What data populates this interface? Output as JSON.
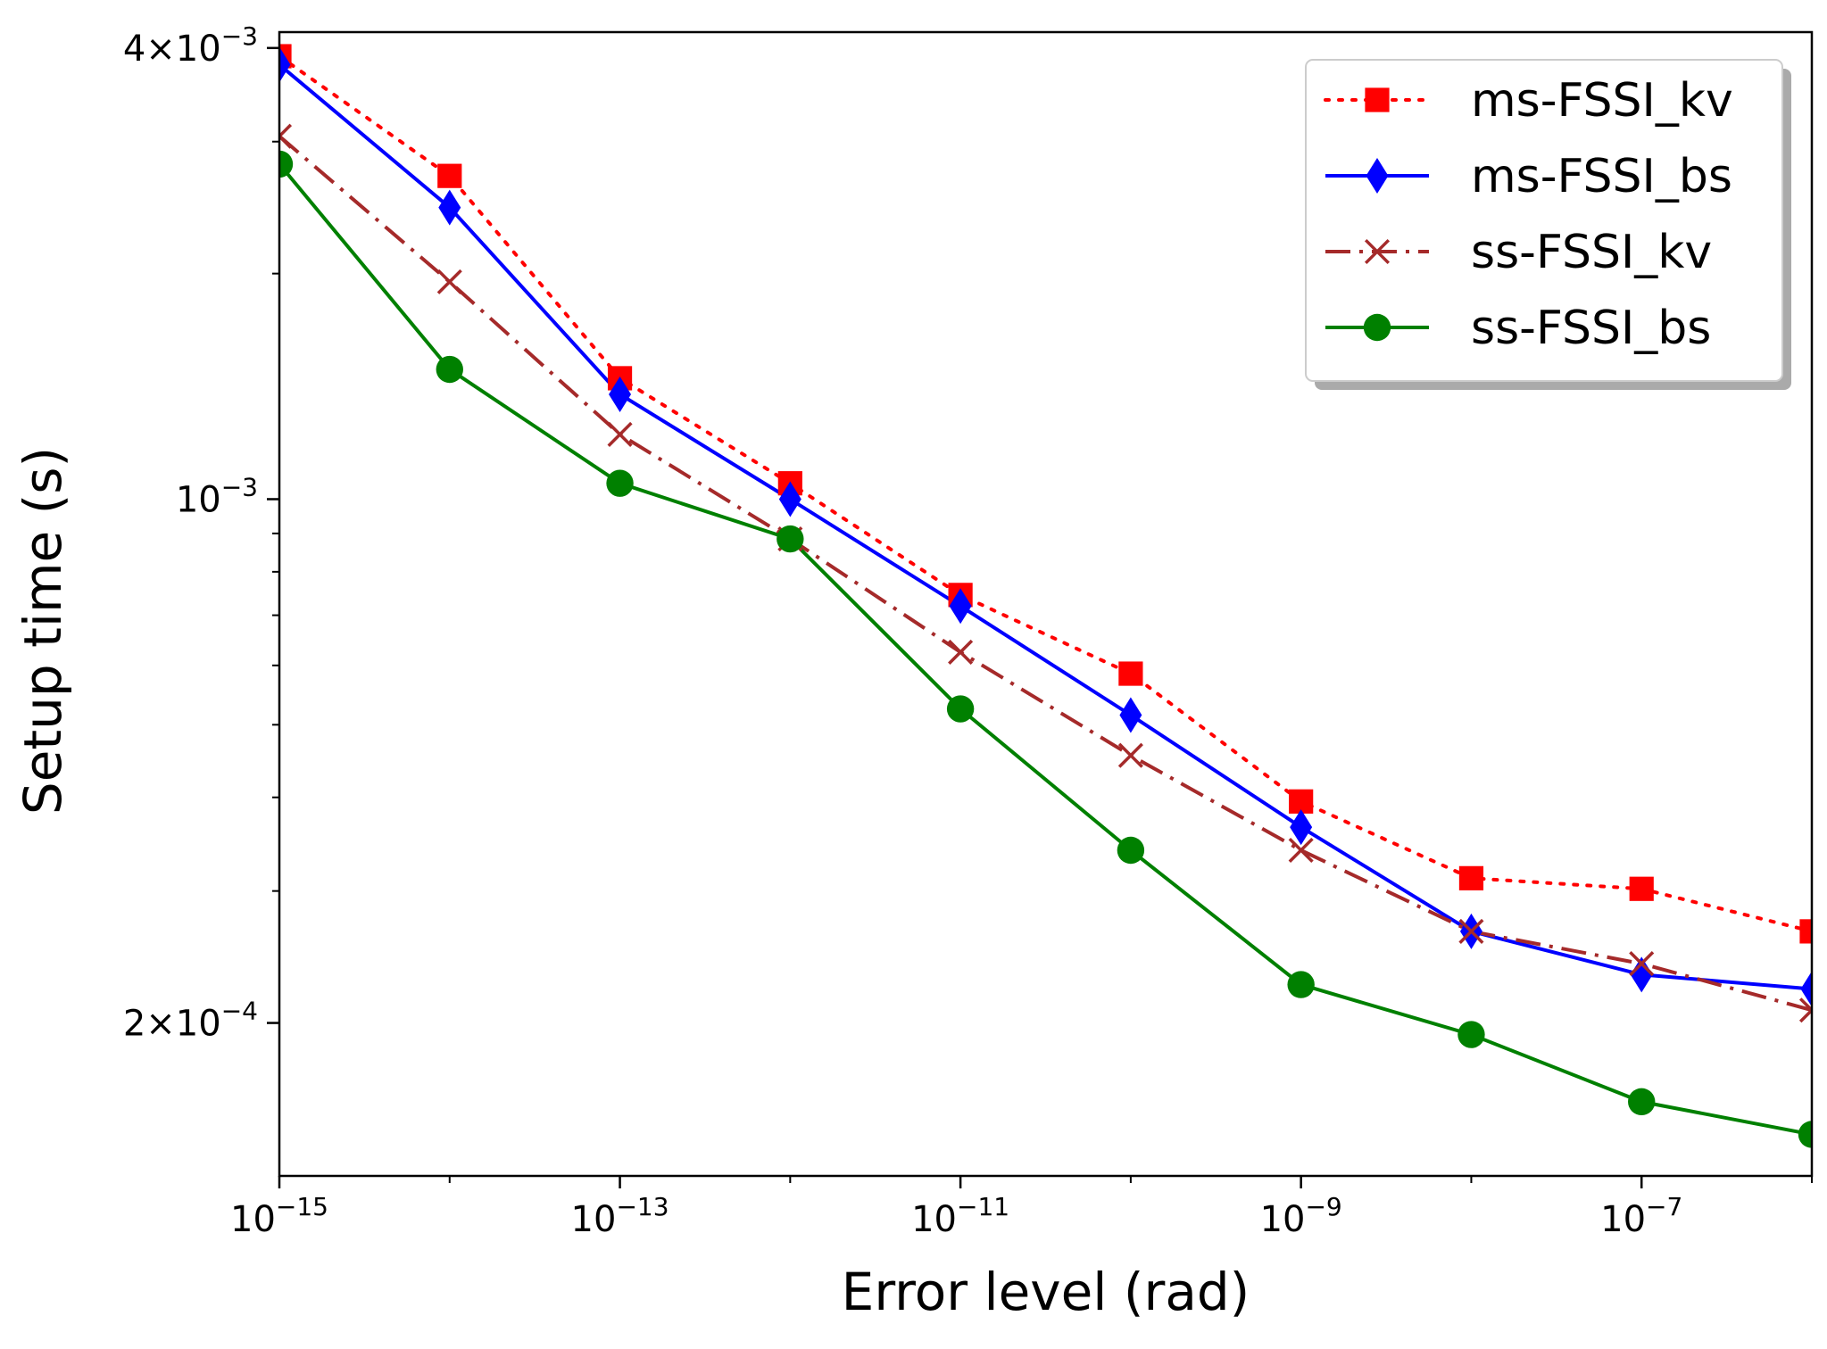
{
  "chart_data": {
    "type": "line",
    "xlabel": "Error level (rad)",
    "ylabel": "Setup time (s)",
    "xscale": "log",
    "yscale": "log",
    "x": [
      1e-15,
      1e-14,
      1e-13,
      1e-12,
      1e-11,
      1e-10,
      1e-09,
      1e-08,
      1e-07,
      1e-06
    ],
    "xlim": [
      1e-15,
      1e-06
    ],
    "ylim": [
      0.000125,
      0.0042
    ],
    "x_ticks": [
      {
        "base": "10",
        "exp": "−15",
        "value": 1e-15
      },
      {
        "base": "10",
        "exp": "−13",
        "value": 1e-13
      },
      {
        "base": "10",
        "exp": "−11",
        "value": 1e-11
      },
      {
        "base": "10",
        "exp": "−9",
        "value": 1e-09
      },
      {
        "base": "10",
        "exp": "−7",
        "value": 1e-07
      }
    ],
    "y_ticks": [
      {
        "base": "4×10",
        "exp": "−3",
        "value": 0.004
      },
      {
        "base": "10",
        "exp": "−3",
        "value": 0.001
      },
      {
        "base": "2×10",
        "exp": "−4",
        "value": 0.0002
      }
    ],
    "y_minor_ticks": [
      0.0003,
      0.0004,
      0.0005,
      0.0006,
      0.0007,
      0.0008,
      0.0009,
      0.002,
      0.003
    ],
    "legend_position": "top-right",
    "series": [
      {
        "name": "ms-FSSI_kv",
        "color": "#ff0000",
        "linestyle": "dotted",
        "marker": "square",
        "values": [
          0.0039,
          0.0027,
          0.00145,
          0.00105,
          0.000745,
          0.000585,
          0.000395,
          0.000312,
          0.000302,
          0.000265
        ]
      },
      {
        "name": "ms-FSSI_bs",
        "color": "#0000ff",
        "linestyle": "solid",
        "marker": "diamond",
        "values": [
          0.0038,
          0.00245,
          0.00138,
          0.001,
          0.00072,
          0.000515,
          0.000365,
          0.000265,
          0.000232,
          0.000222
        ]
      },
      {
        "name": "ss-FSSI_kv",
        "color": "#a52a2a",
        "linestyle": "dashdot",
        "marker": "x",
        "values": [
          0.00305,
          0.00195,
          0.00122,
          0.000885,
          0.000625,
          0.000455,
          0.00034,
          0.000265,
          0.00024,
          0.000208
        ]
      },
      {
        "name": "ss-FSSI_bs",
        "color": "#008000",
        "linestyle": "solid",
        "marker": "circle",
        "values": [
          0.0028,
          0.00149,
          0.00105,
          0.000885,
          0.000525,
          0.00034,
          0.000225,
          0.000193,
          0.000157,
          0.000142
        ]
      }
    ]
  }
}
